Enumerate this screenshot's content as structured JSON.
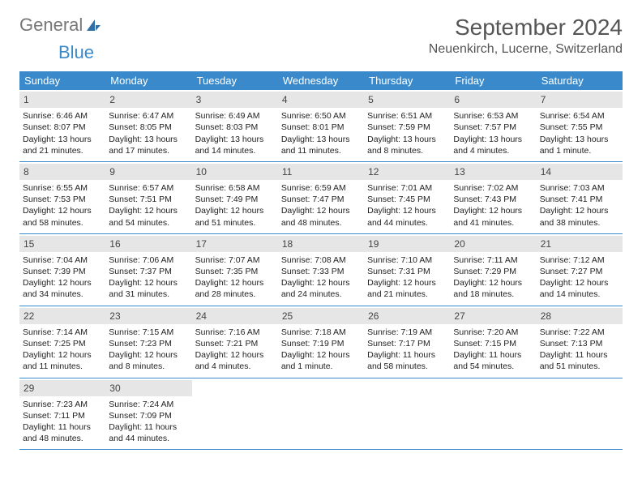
{
  "brand": {
    "general": "General",
    "blue": "Blue"
  },
  "title": {
    "month": "September 2024",
    "location": "Neuenkirch, Lucerne, Switzerland"
  },
  "colors": {
    "accent": "#3a8acb",
    "header_bg": "#3a8acb",
    "day_num_bg": "#e6e6e6",
    "text": "#222222",
    "title_text": "#555555",
    "background": "#ffffff"
  },
  "day_headers": [
    "Sunday",
    "Monday",
    "Tuesday",
    "Wednesday",
    "Thursday",
    "Friday",
    "Saturday"
  ],
  "weeks": [
    [
      {
        "n": "1",
        "sr": "Sunrise: 6:46 AM",
        "ss": "Sunset: 8:07 PM",
        "dl1": "Daylight: 13 hours",
        "dl2": "and 21 minutes."
      },
      {
        "n": "2",
        "sr": "Sunrise: 6:47 AM",
        "ss": "Sunset: 8:05 PM",
        "dl1": "Daylight: 13 hours",
        "dl2": "and 17 minutes."
      },
      {
        "n": "3",
        "sr": "Sunrise: 6:49 AM",
        "ss": "Sunset: 8:03 PM",
        "dl1": "Daylight: 13 hours",
        "dl2": "and 14 minutes."
      },
      {
        "n": "4",
        "sr": "Sunrise: 6:50 AM",
        "ss": "Sunset: 8:01 PM",
        "dl1": "Daylight: 13 hours",
        "dl2": "and 11 minutes."
      },
      {
        "n": "5",
        "sr": "Sunrise: 6:51 AM",
        "ss": "Sunset: 7:59 PM",
        "dl1": "Daylight: 13 hours",
        "dl2": "and 8 minutes."
      },
      {
        "n": "6",
        "sr": "Sunrise: 6:53 AM",
        "ss": "Sunset: 7:57 PM",
        "dl1": "Daylight: 13 hours",
        "dl2": "and 4 minutes."
      },
      {
        "n": "7",
        "sr": "Sunrise: 6:54 AM",
        "ss": "Sunset: 7:55 PM",
        "dl1": "Daylight: 13 hours",
        "dl2": "and 1 minute."
      }
    ],
    [
      {
        "n": "8",
        "sr": "Sunrise: 6:55 AM",
        "ss": "Sunset: 7:53 PM",
        "dl1": "Daylight: 12 hours",
        "dl2": "and 58 minutes."
      },
      {
        "n": "9",
        "sr": "Sunrise: 6:57 AM",
        "ss": "Sunset: 7:51 PM",
        "dl1": "Daylight: 12 hours",
        "dl2": "and 54 minutes."
      },
      {
        "n": "10",
        "sr": "Sunrise: 6:58 AM",
        "ss": "Sunset: 7:49 PM",
        "dl1": "Daylight: 12 hours",
        "dl2": "and 51 minutes."
      },
      {
        "n": "11",
        "sr": "Sunrise: 6:59 AM",
        "ss": "Sunset: 7:47 PM",
        "dl1": "Daylight: 12 hours",
        "dl2": "and 48 minutes."
      },
      {
        "n": "12",
        "sr": "Sunrise: 7:01 AM",
        "ss": "Sunset: 7:45 PM",
        "dl1": "Daylight: 12 hours",
        "dl2": "and 44 minutes."
      },
      {
        "n": "13",
        "sr": "Sunrise: 7:02 AM",
        "ss": "Sunset: 7:43 PM",
        "dl1": "Daylight: 12 hours",
        "dl2": "and 41 minutes."
      },
      {
        "n": "14",
        "sr": "Sunrise: 7:03 AM",
        "ss": "Sunset: 7:41 PM",
        "dl1": "Daylight: 12 hours",
        "dl2": "and 38 minutes."
      }
    ],
    [
      {
        "n": "15",
        "sr": "Sunrise: 7:04 AM",
        "ss": "Sunset: 7:39 PM",
        "dl1": "Daylight: 12 hours",
        "dl2": "and 34 minutes."
      },
      {
        "n": "16",
        "sr": "Sunrise: 7:06 AM",
        "ss": "Sunset: 7:37 PM",
        "dl1": "Daylight: 12 hours",
        "dl2": "and 31 minutes."
      },
      {
        "n": "17",
        "sr": "Sunrise: 7:07 AM",
        "ss": "Sunset: 7:35 PM",
        "dl1": "Daylight: 12 hours",
        "dl2": "and 28 minutes."
      },
      {
        "n": "18",
        "sr": "Sunrise: 7:08 AM",
        "ss": "Sunset: 7:33 PM",
        "dl1": "Daylight: 12 hours",
        "dl2": "and 24 minutes."
      },
      {
        "n": "19",
        "sr": "Sunrise: 7:10 AM",
        "ss": "Sunset: 7:31 PM",
        "dl1": "Daylight: 12 hours",
        "dl2": "and 21 minutes."
      },
      {
        "n": "20",
        "sr": "Sunrise: 7:11 AM",
        "ss": "Sunset: 7:29 PM",
        "dl1": "Daylight: 12 hours",
        "dl2": "and 18 minutes."
      },
      {
        "n": "21",
        "sr": "Sunrise: 7:12 AM",
        "ss": "Sunset: 7:27 PM",
        "dl1": "Daylight: 12 hours",
        "dl2": "and 14 minutes."
      }
    ],
    [
      {
        "n": "22",
        "sr": "Sunrise: 7:14 AM",
        "ss": "Sunset: 7:25 PM",
        "dl1": "Daylight: 12 hours",
        "dl2": "and 11 minutes."
      },
      {
        "n": "23",
        "sr": "Sunrise: 7:15 AM",
        "ss": "Sunset: 7:23 PM",
        "dl1": "Daylight: 12 hours",
        "dl2": "and 8 minutes."
      },
      {
        "n": "24",
        "sr": "Sunrise: 7:16 AM",
        "ss": "Sunset: 7:21 PM",
        "dl1": "Daylight: 12 hours",
        "dl2": "and 4 minutes."
      },
      {
        "n": "25",
        "sr": "Sunrise: 7:18 AM",
        "ss": "Sunset: 7:19 PM",
        "dl1": "Daylight: 12 hours",
        "dl2": "and 1 minute."
      },
      {
        "n": "26",
        "sr": "Sunrise: 7:19 AM",
        "ss": "Sunset: 7:17 PM",
        "dl1": "Daylight: 11 hours",
        "dl2": "and 58 minutes."
      },
      {
        "n": "27",
        "sr": "Sunrise: 7:20 AM",
        "ss": "Sunset: 7:15 PM",
        "dl1": "Daylight: 11 hours",
        "dl2": "and 54 minutes."
      },
      {
        "n": "28",
        "sr": "Sunrise: 7:22 AM",
        "ss": "Sunset: 7:13 PM",
        "dl1": "Daylight: 11 hours",
        "dl2": "and 51 minutes."
      }
    ],
    [
      {
        "n": "29",
        "sr": "Sunrise: 7:23 AM",
        "ss": "Sunset: 7:11 PM",
        "dl1": "Daylight: 11 hours",
        "dl2": "and 48 minutes."
      },
      {
        "n": "30",
        "sr": "Sunrise: 7:24 AM",
        "ss": "Sunset: 7:09 PM",
        "dl1": "Daylight: 11 hours",
        "dl2": "and 44 minutes."
      },
      {
        "empty": true
      },
      {
        "empty": true
      },
      {
        "empty": true
      },
      {
        "empty": true
      },
      {
        "empty": true
      }
    ]
  ]
}
